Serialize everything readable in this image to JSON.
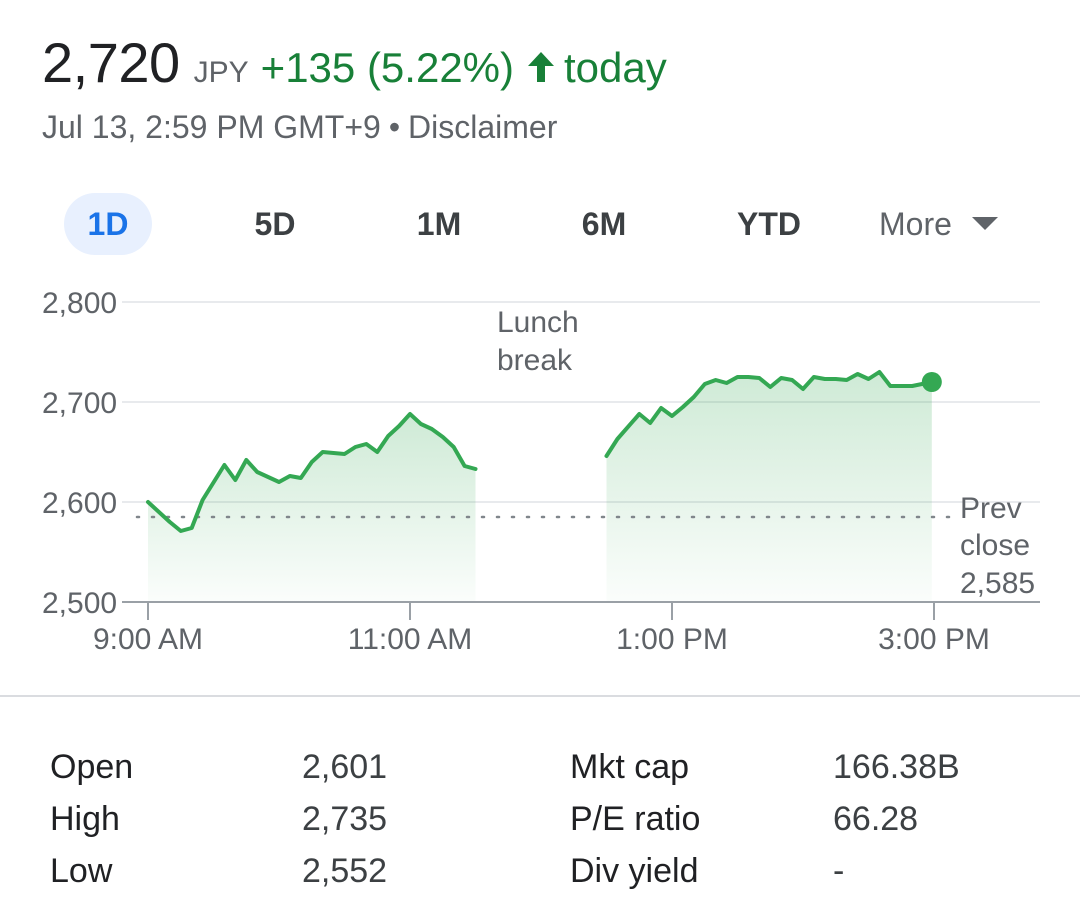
{
  "quote": {
    "price": "2,720",
    "currency": "JPY",
    "change": "+135 (5.22%)",
    "period": "today",
    "timestamp": "Jul 13, 2:59 PM GMT+9",
    "separator": "•",
    "disclaimer": "Disclaimer",
    "accent_color": "#188038"
  },
  "ranges": [
    "1D",
    "5D",
    "1M",
    "6M",
    "YTD"
  ],
  "active_range": "1D",
  "more_label": "More",
  "chart_data": {
    "type": "area",
    "ylim": [
      2500,
      2800
    ],
    "y_ticks": [
      "2,800",
      "2,700",
      "2,600",
      "2,500"
    ],
    "x_ticks": [
      "9:00 AM",
      "11:00 AM",
      "1:00 PM",
      "3:00 PM"
    ],
    "annotation": [
      "Lunch",
      "break"
    ],
    "prev_close": {
      "label_line1": "Prev",
      "label_line2": "close",
      "value_label": "2,585",
      "value": 2585
    },
    "line_color": "#34a853",
    "series": [
      {
        "session": "morning",
        "x": [
          "9:00",
          "9:10",
          "9:15",
          "9:20",
          "9:25",
          "9:35",
          "9:40",
          "9:45",
          "9:50",
          "10:00",
          "10:05",
          "10:10",
          "10:15",
          "10:20",
          "10:30",
          "10:35",
          "10:40",
          "10:45",
          "10:50",
          "10:55",
          "11:00",
          "11:05",
          "11:10",
          "11:15",
          "11:20",
          "11:25",
          "11:30"
        ],
        "values": [
          2600,
          2580,
          2571,
          2574,
          2602,
          2637,
          2622,
          2642,
          2630,
          2620,
          2626,
          2624,
          2640,
          2650,
          2648,
          2655,
          2658,
          2650,
          2666,
          2676,
          2688,
          2678,
          2673,
          2665,
          2655,
          2636,
          2633
        ]
      },
      {
        "session": "afternoon",
        "x": [
          "12:30",
          "12:35",
          "12:45",
          "12:50",
          "12:55",
          "13:00",
          "13:05",
          "13:10",
          "13:15",
          "13:20",
          "13:25",
          "13:30",
          "13:35",
          "13:40",
          "13:45",
          "13:50",
          "13:55",
          "14:00",
          "14:05",
          "14:10",
          "14:15",
          "14:20",
          "14:25",
          "14:30",
          "14:35",
          "14:40",
          "14:45",
          "14:50",
          "14:59"
        ],
        "values": [
          2646,
          2663,
          2688,
          2679,
          2694,
          2686,
          2695,
          2705,
          2718,
          2722,
          2719,
          2725,
          2725,
          2724,
          2715,
          2724,
          2722,
          2713,
          2725,
          2723,
          2723,
          2722,
          2728,
          2723,
          2730,
          2716,
          2716,
          2716,
          2720
        ]
      }
    ]
  },
  "stats": [
    {
      "label": "Open",
      "value": "2,601"
    },
    {
      "label": "High",
      "value": "2,735"
    },
    {
      "label": "Low",
      "value": "2,552"
    },
    {
      "label": "Mkt cap",
      "value": "166.38B"
    },
    {
      "label": "P/E ratio",
      "value": "66.28"
    },
    {
      "label": "Div yield",
      "value": "-"
    }
  ]
}
